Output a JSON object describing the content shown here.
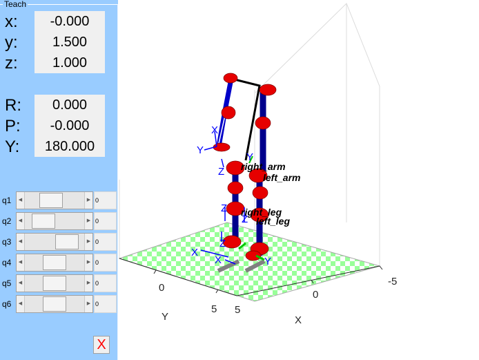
{
  "panel": {
    "title": "Teach",
    "position": [
      {
        "label": "x:",
        "value": "-0.000"
      },
      {
        "label": "y:",
        "value": "1.500"
      },
      {
        "label": "z:",
        "value": "1.000"
      }
    ],
    "orientation": [
      {
        "label": "R:",
        "value": "0.000"
      },
      {
        "label": "P:",
        "value": "-0.000"
      },
      {
        "label": "Y:",
        "value": "180.000"
      }
    ],
    "joints": [
      {
        "label": "q1",
        "value": "0",
        "fraction": 0.4
      },
      {
        "label": "q2",
        "value": "0",
        "fraction": 0.2
      },
      {
        "label": "q3",
        "value": "0",
        "fraction": 0.85
      },
      {
        "label": "q4",
        "value": "0",
        "fraction": 0.5
      },
      {
        "label": "q5",
        "value": "0",
        "fraction": 0.5
      },
      {
        "label": "q6",
        "value": "0",
        "fraction": 0.5
      }
    ],
    "close_label": "X"
  },
  "scene": {
    "x_axis_label": "X",
    "y_axis_label": "Y",
    "x_ticks": [
      "-5",
      "0",
      "5"
    ],
    "y_ticks": [
      "0",
      "5"
    ],
    "link_labels": [
      "right_arm",
      "left_arm",
      "right_leg",
      "left_leg"
    ],
    "frame_labels": [
      "X",
      "Y",
      "Z"
    ],
    "colors": {
      "panel": "#99ccff",
      "floor_a": "#99ff99",
      "floor_b": "#ffffff",
      "link": "#0000a0",
      "joint": "#ff0000",
      "frame": "#0000ff"
    }
  }
}
